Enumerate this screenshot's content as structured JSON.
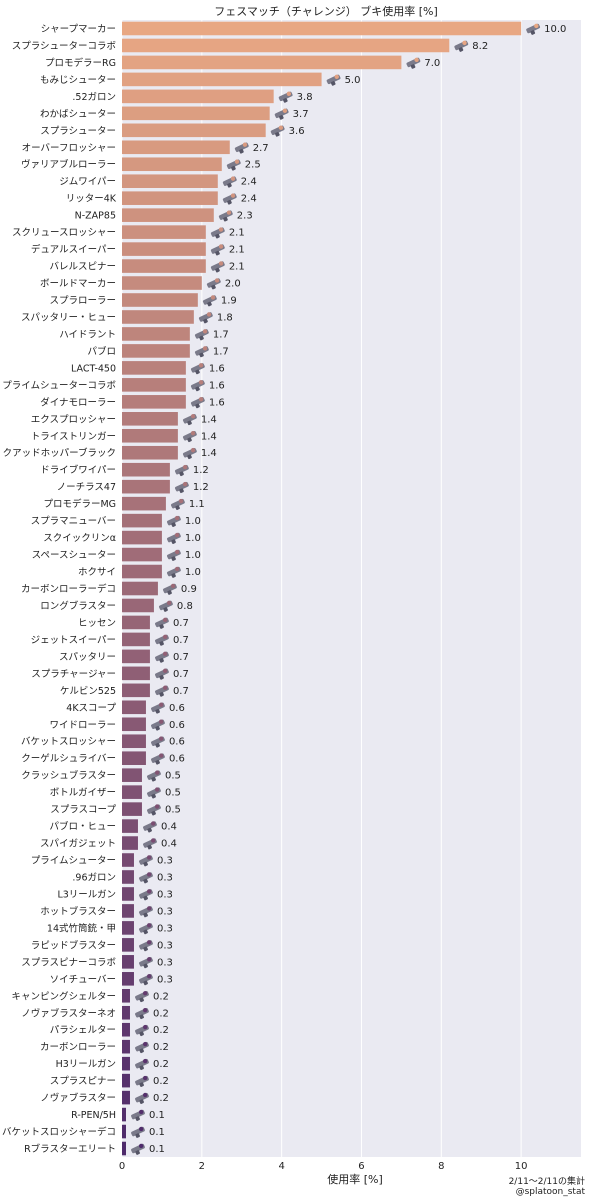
{
  "chart_data": {
    "type": "bar",
    "orientation": "horizontal",
    "title": "フェスマッチ（チャレンジ） ブキ使用率 [%]",
    "xlabel": "使用率 [%]",
    "ylabel": "",
    "xlim": [
      0,
      11.5
    ],
    "xticks": [
      "0",
      "2",
      "4",
      "6",
      "8",
      "10"
    ],
    "grid": true,
    "background": "#EAEAF2",
    "gradient_start": "#E8A783",
    "gradient_end": "#4E2A6B",
    "categories": [
      "シャープマーカー",
      "スプラシューターコラボ",
      "プロモデラーRG",
      "もみじシューター",
      ".52ガロン",
      "わかばシューター",
      "スプラシューター",
      "オーバーフロッシャー",
      "ヴァリアブルローラー",
      "ジムワイパー",
      "リッター4K",
      "N-ZAP85",
      "スクリュースロッシャー",
      "デュアルスイーパー",
      "バレルスピナー",
      "ボールドマーカー",
      "スプラローラー",
      "スパッタリー・ヒュー",
      "ハイドラント",
      "パブロ",
      "LACT-450",
      "プライムシューターコラボ",
      "ダイナモローラー",
      "エクスプロッシャー",
      "トライストリンガー",
      "クアッドホッパーブラック",
      "ドライブワイパー",
      "ノーチラス47",
      "プロモデラーMG",
      "スプラマニューバー",
      "スクイックリンα",
      "スペースシューター",
      "ホクサイ",
      "カーボンローラーデコ",
      "ロングブラスター",
      "ヒッセン",
      "ジェットスイーパー",
      "スパッタリー",
      "スプラチャージャー",
      "ケルビン525",
      "4Kスコープ",
      "ワイドローラー",
      "バケットスロッシャー",
      "クーゲルシュライバー",
      "クラッシュブラスター",
      "ボトルガイザー",
      "スプラスコープ",
      "パブロ・ヒュー",
      "スパイガジェット",
      "プライムシューター",
      ".96ガロン",
      "L3リールガン",
      "ホットブラスター",
      "14式竹筒銃・甲",
      "ラピッドブラスター",
      "スプラスピナーコラボ",
      "ソイチューバー",
      "キャンピングシェルター",
      "ノヴァブラスターネオ",
      "パラシェルター",
      "カーボンローラー",
      "H3リールガン",
      "スプラスピナー",
      "ノヴァブラスター",
      "R-PEN/5H",
      "バケットスロッシャーデコ",
      "Rブラスターエリート"
    ],
    "values": [
      10.0,
      8.2,
      7.0,
      5.0,
      3.8,
      3.7,
      3.6,
      2.7,
      2.5,
      2.4,
      2.4,
      2.3,
      2.1,
      2.1,
      2.1,
      2.0,
      1.9,
      1.8,
      1.7,
      1.7,
      1.6,
      1.6,
      1.6,
      1.4,
      1.4,
      1.4,
      1.2,
      1.2,
      1.1,
      1.0,
      1.0,
      1.0,
      1.0,
      0.9,
      0.8,
      0.7,
      0.7,
      0.7,
      0.7,
      0.7,
      0.6,
      0.6,
      0.6,
      0.6,
      0.5,
      0.5,
      0.5,
      0.4,
      0.4,
      0.3,
      0.3,
      0.3,
      0.3,
      0.3,
      0.3,
      0.3,
      0.3,
      0.2,
      0.2,
      0.2,
      0.2,
      0.2,
      0.2,
      0.2,
      0.1,
      0.1,
      0.1
    ],
    "value_labels": [
      "10.0",
      "8.2",
      "7.0",
      "5.0",
      "3.8",
      "3.7",
      "3.6",
      "2.7",
      "2.5",
      "2.4",
      "2.4",
      "2.3",
      "2.1",
      "2.1",
      "2.1",
      "2.0",
      "1.9",
      "1.8",
      "1.7",
      "1.7",
      "1.6",
      "1.6",
      "1.6",
      "1.4",
      "1.4",
      "1.4",
      "1.2",
      "1.2",
      "1.1",
      "1.0",
      "1.0",
      "1.0",
      "1.0",
      "0.9",
      "0.8",
      "0.7",
      "0.7",
      "0.7",
      "0.7",
      "0.7",
      "0.6",
      "0.6",
      "0.6",
      "0.6",
      "0.5",
      "0.5",
      "0.5",
      "0.4",
      "0.4",
      "0.3",
      "0.3",
      "0.3",
      "0.3",
      "0.3",
      "0.3",
      "0.3",
      "0.3",
      "0.2",
      "0.2",
      "0.2",
      "0.2",
      "0.2",
      "0.2",
      "0.2",
      "0.1",
      "0.1",
      "0.1"
    ]
  },
  "footer": {
    "date_range": "2/11～2/11の集計",
    "handle": "@splatoon_stat"
  }
}
